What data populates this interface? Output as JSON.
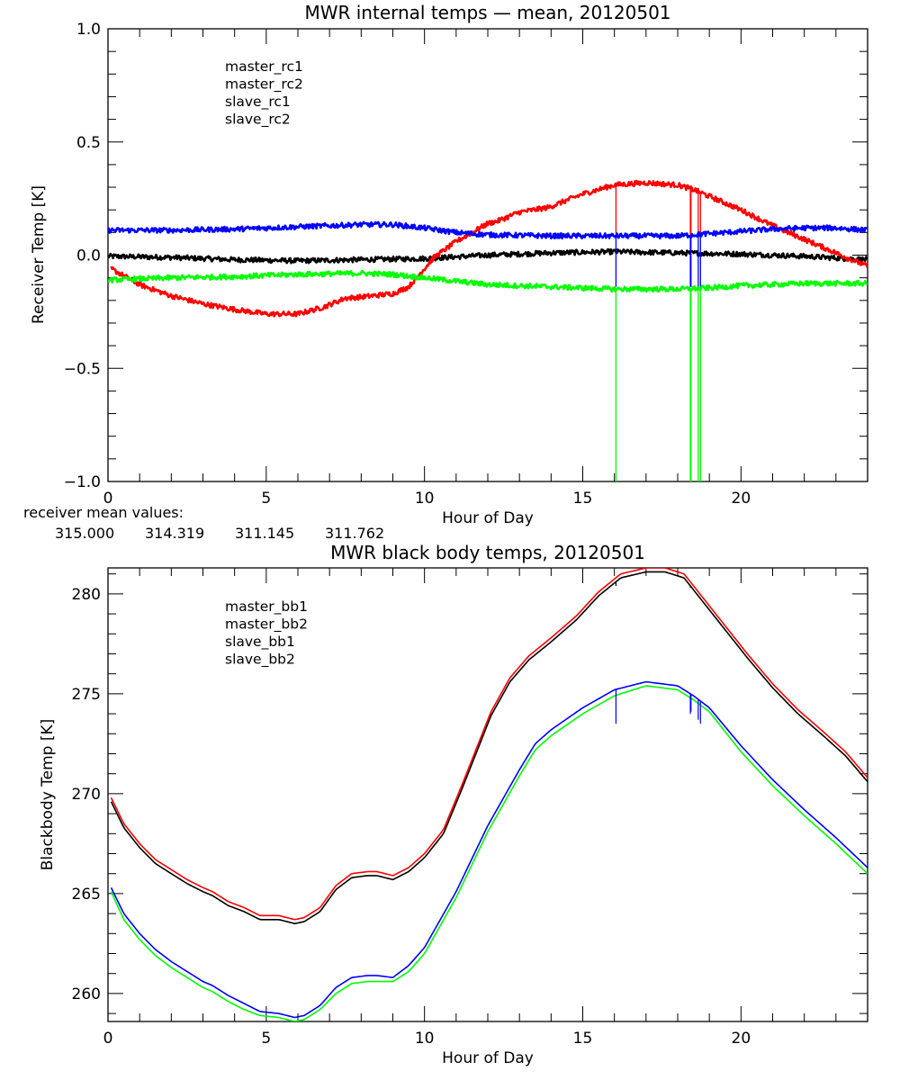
{
  "colors": {
    "black": "#000000",
    "red": "#ff0000",
    "blue": "#0000ff",
    "green": "#00ff00"
  },
  "receiver_mean": {
    "label": "receiver mean values:",
    "values": [
      {
        "text": "315.000",
        "color": "#000000"
      },
      {
        "text": "314.319",
        "color": "#ff0000"
      },
      {
        "text": "311.145",
        "color": "#0000ff"
      },
      {
        "text": "311.762",
        "color": "#00ff00"
      }
    ]
  },
  "chart_data": [
    {
      "type": "line",
      "title": "MWR internal temps — mean, 20120501",
      "xlabel": "Hour of Day",
      "ylabel": "Receiver Temp [K]",
      "xlim": [
        0,
        24
      ],
      "ylim": [
        -1.0,
        1.0
      ],
      "xticks": [
        0,
        5,
        10,
        15,
        20
      ],
      "xtick_labels": [
        "0",
        "5",
        "10",
        "15",
        "20"
      ],
      "x_minor_step": 1,
      "yticks": [
        -1.0,
        -0.5,
        0.0,
        0.5,
        1.0
      ],
      "ytick_labels": [
        "−1.0",
        "−0.5",
        "0.0",
        "0.5",
        "1.0"
      ],
      "y_minor_step": 0.1,
      "grid": false,
      "legend_position": "top-left",
      "series": [
        {
          "name": "master_rc1",
          "color": "#000000",
          "x": [
            0,
            2,
            4,
            6,
            8,
            10,
            12,
            14,
            16,
            18,
            20,
            22,
            24
          ],
          "y": [
            -0.005,
            -0.01,
            -0.02,
            -0.025,
            -0.02,
            -0.015,
            0.0,
            0.01,
            0.015,
            0.01,
            0.005,
            -0.005,
            -0.02
          ],
          "spikes": []
        },
        {
          "name": "master_rc2",
          "color": "#ff0000",
          "x": [
            0.1,
            1,
            2,
            3,
            4,
            5,
            6,
            6.8,
            7.5,
            8,
            9,
            9.5,
            10.3,
            11,
            12,
            12.3,
            13,
            13.9,
            15,
            16,
            17,
            18,
            18.5,
            19,
            20,
            21,
            22,
            23,
            24
          ],
          "y": [
            -0.06,
            -0.13,
            -0.18,
            -0.215,
            -0.24,
            -0.26,
            -0.26,
            -0.23,
            -0.19,
            -0.185,
            -0.17,
            -0.14,
            -0.01,
            0.06,
            0.14,
            0.15,
            0.19,
            0.21,
            0.27,
            0.31,
            0.32,
            0.31,
            0.29,
            0.26,
            0.2,
            0.13,
            0.07,
            0.01,
            -0.05
          ],
          "spikes": [
            {
              "x": 16.05,
              "to": 0.09
            },
            {
              "x": 18.4,
              "to": 0.09
            },
            {
              "x": 18.42,
              "to": 0.09
            },
            {
              "x": 18.65,
              "to": 0.09
            },
            {
              "x": 18.72,
              "to": 0.09
            }
          ]
        },
        {
          "name": "slave_rc1",
          "color": "#0000ff",
          "x": [
            0,
            2,
            4,
            6,
            8,
            9,
            10,
            11,
            12,
            14,
            16,
            18,
            19,
            20,
            21,
            22,
            23,
            24
          ],
          "y": [
            0.11,
            0.11,
            0.115,
            0.125,
            0.135,
            0.135,
            0.12,
            0.1,
            0.09,
            0.085,
            0.085,
            0.085,
            0.095,
            0.105,
            0.115,
            0.12,
            0.12,
            0.11
          ],
          "spikes": [
            {
              "x": 16.05,
              "to": -0.14
            },
            {
              "x": 18.4,
              "to": -0.14
            },
            {
              "x": 18.42,
              "to": -0.14
            },
            {
              "x": 18.65,
              "to": -0.14
            },
            {
              "x": 18.72,
              "to": -0.14
            }
          ]
        },
        {
          "name": "slave_rc2",
          "color": "#00ff00",
          "x": [
            0,
            2,
            4,
            6,
            8,
            9,
            10,
            11,
            12,
            14,
            16,
            18,
            19,
            20,
            22,
            24
          ],
          "y": [
            -0.11,
            -0.1,
            -0.095,
            -0.085,
            -0.08,
            -0.085,
            -0.1,
            -0.115,
            -0.13,
            -0.14,
            -0.15,
            -0.15,
            -0.145,
            -0.135,
            -0.125,
            -0.125
          ],
          "spikes": [
            {
              "x": 16.05,
              "to": -1.0
            },
            {
              "x": 18.4,
              "to": -1.0
            },
            {
              "x": 18.42,
              "to": -1.0
            },
            {
              "x": 18.65,
              "to": -1.0
            },
            {
              "x": 18.72,
              "to": -1.0
            }
          ]
        }
      ]
    },
    {
      "type": "line",
      "title": "MWR black body temps, 20120501",
      "xlabel": "Hour of Day",
      "ylabel": "Blackbody Temp [K]",
      "xlim": [
        0,
        24
      ],
      "ylim": [
        258.6,
        281.3
      ],
      "xticks": [
        0,
        5,
        10,
        15,
        20
      ],
      "xtick_labels": [
        "0",
        "5",
        "10",
        "15",
        "20"
      ],
      "x_minor_step": 1,
      "yticks": [
        260,
        265,
        270,
        275,
        280
      ],
      "ytick_labels": [
        "260",
        "265",
        "270",
        "275",
        "280"
      ],
      "y_minor_step": 1,
      "grid": false,
      "legend_position": "top-left",
      "series": [
        {
          "name": "master_bb1",
          "color": "#000000",
          "x": [
            0.1,
            0.5,
            1,
            1.5,
            2,
            2.5,
            3,
            3.3,
            3.8,
            4.3,
            4.8,
            5.4,
            5.9,
            6.2,
            6.7,
            7.2,
            7.7,
            8.2,
            8.5,
            9,
            9.5,
            10,
            10.6,
            11.2,
            12.1,
            12.7,
            13.3,
            14,
            14.8,
            15.5,
            16.2,
            17,
            17.6,
            18.2,
            18.8,
            19.5,
            20.2,
            21,
            21.8,
            22.6,
            23.3,
            24
          ],
          "y": [
            269.6,
            268.3,
            267.3,
            266.5,
            266.0,
            265.5,
            265.1,
            264.9,
            264.4,
            264.1,
            263.7,
            263.7,
            263.5,
            263.6,
            264.1,
            265.2,
            265.8,
            265.9,
            265.9,
            265.7,
            266.1,
            266.8,
            268.0,
            270.3,
            273.9,
            275.6,
            276.7,
            277.6,
            278.7,
            279.9,
            280.8,
            281.1,
            281.1,
            280.8,
            279.6,
            278.2,
            276.8,
            275.3,
            274.0,
            272.9,
            271.9,
            270.6
          ]
        },
        {
          "name": "master_bb2",
          "color": "#ff0000",
          "x": [
            0.1,
            0.5,
            1,
            1.5,
            2,
            2.5,
            3,
            3.3,
            3.8,
            4.3,
            4.8,
            5.4,
            5.9,
            6.2,
            6.7,
            7.2,
            7.7,
            8.2,
            8.5,
            9,
            9.5,
            10,
            10.6,
            11.2,
            12.1,
            12.7,
            13.3,
            14,
            14.8,
            15.5,
            16.2,
            17,
            17.6,
            18.2,
            18.8,
            19.5,
            20.2,
            21,
            21.8,
            22.6,
            23.3,
            24
          ],
          "y": [
            269.8,
            268.5,
            267.5,
            266.7,
            266.2,
            265.7,
            265.3,
            265.1,
            264.6,
            264.3,
            263.9,
            263.9,
            263.7,
            263.8,
            264.3,
            265.4,
            266.0,
            266.1,
            266.1,
            265.9,
            266.3,
            267.0,
            268.2,
            270.5,
            274.1,
            275.8,
            276.9,
            277.8,
            278.9,
            280.1,
            281.0,
            281.3,
            281.3,
            281.0,
            279.8,
            278.4,
            277.0,
            275.5,
            274.2,
            273.1,
            272.1,
            270.8
          ],
          "spikes": []
        },
        {
          "name": "slave_bb1",
          "color": "#0000ff",
          "x": [
            0.1,
            0.5,
            1,
            1.5,
            2,
            2.5,
            3,
            3.3,
            3.8,
            4.3,
            4.8,
            5.4,
            5.9,
            6.2,
            6.7,
            7.2,
            7.7,
            8.2,
            8.5,
            9,
            9.5,
            10,
            11,
            12,
            13,
            13.5,
            14,
            15,
            16,
            17,
            18,
            18.5,
            19,
            20,
            21,
            22,
            23,
            24
          ],
          "y": [
            265.3,
            264.0,
            263.0,
            262.2,
            261.6,
            261.1,
            260.6,
            260.4,
            259.9,
            259.5,
            259.1,
            259.0,
            258.8,
            258.9,
            259.4,
            260.3,
            260.8,
            260.9,
            260.9,
            260.8,
            261.4,
            262.3,
            265.1,
            268.4,
            271.2,
            272.5,
            273.2,
            274.3,
            275.2,
            275.6,
            275.4,
            274.9,
            274.3,
            272.4,
            270.7,
            269.2,
            267.8,
            266.3
          ]
        },
        {
          "name": "slave_bb2",
          "color": "#00ff00",
          "x": [
            0.1,
            0.5,
            1,
            1.5,
            2,
            2.5,
            3,
            3.3,
            3.8,
            4.3,
            4.8,
            5.4,
            5.9,
            6.2,
            6.7,
            7.2,
            7.7,
            8.2,
            8.5,
            9,
            9.5,
            10,
            11,
            12,
            13,
            13.5,
            14,
            15,
            16,
            17,
            18,
            18.5,
            19,
            20,
            21,
            22,
            23,
            24
          ],
          "y": [
            265.1,
            263.7,
            262.7,
            261.9,
            261.3,
            260.8,
            260.3,
            260.1,
            259.6,
            259.2,
            258.9,
            258.8,
            258.6,
            258.7,
            259.2,
            260.0,
            260.5,
            260.6,
            260.6,
            260.6,
            261.1,
            262.0,
            264.8,
            268.1,
            270.9,
            272.2,
            272.9,
            274.0,
            274.9,
            275.4,
            275.2,
            274.7,
            274.1,
            272.1,
            270.4,
            268.9,
            267.5,
            266.0
          ]
        }
      ],
      "spikes": [
        {
          "series": "master_bb1",
          "x": 16.05,
          "to": 280.4
        },
        {
          "series": "master_bb1",
          "x": 18.4,
          "to": 280.3
        },
        {
          "series": "master_bb1",
          "x": 18.65,
          "to": 279.9
        },
        {
          "series": "slave_bb1",
          "x": 16.05,
          "to": 273.5
        },
        {
          "series": "slave_bb1",
          "x": 18.4,
          "to": 274.0
        },
        {
          "series": "slave_bb1",
          "x": 18.42,
          "to": 274.1
        },
        {
          "series": "slave_bb1",
          "x": 18.65,
          "to": 273.7
        },
        {
          "series": "slave_bb1",
          "x": 18.72,
          "to": 273.5
        }
      ]
    }
  ]
}
